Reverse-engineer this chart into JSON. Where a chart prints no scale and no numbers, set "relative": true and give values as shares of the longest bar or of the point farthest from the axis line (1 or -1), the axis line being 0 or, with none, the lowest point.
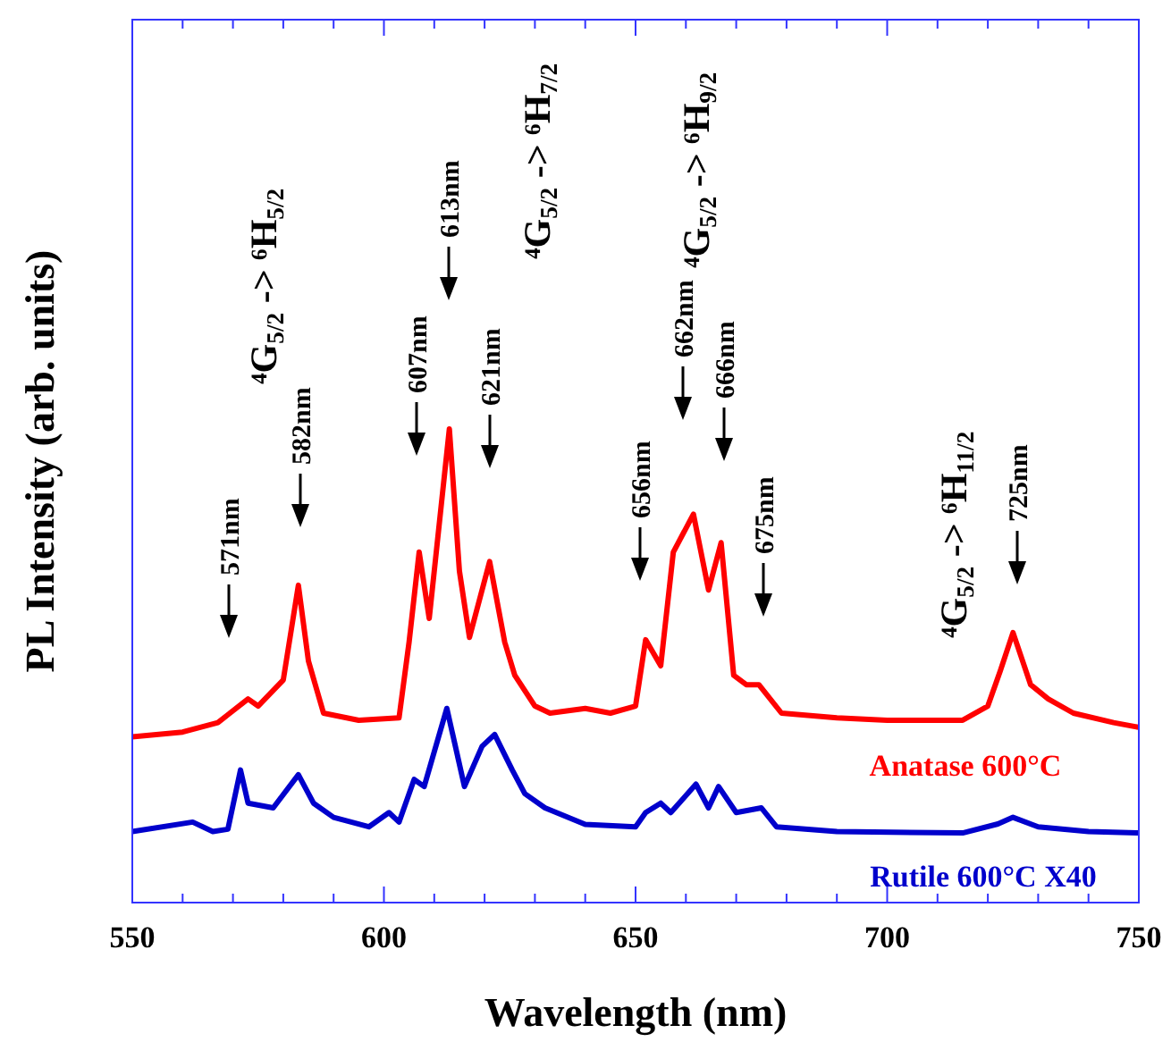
{
  "chart_data": {
    "type": "line",
    "relative": true,
    "xlabel": "Wavelength (nm)",
    "ylabel": "PL Intensity (arb. units)",
    "xlim": [
      550,
      750
    ],
    "xticks": [
      550,
      {
        "value": 560,
        "label": null
      },
      {
        "value": 570,
        "label": null
      },
      {
        "value": 580,
        "label": null
      },
      {
        "value": 590,
        "label": null
      },
      600,
      {
        "value": 610,
        "label": null
      },
      {
        "value": 620,
        "label": null
      },
      {
        "value": 630,
        "label": null
      },
      {
        "value": 640,
        "label": null
      },
      650,
      {
        "value": 660,
        "label": null
      },
      {
        "value": 670,
        "label": null
      },
      {
        "value": 680,
        "label": null
      },
      {
        "value": 690,
        "label": null
      },
      700,
      {
        "value": 710,
        "label": null
      },
      {
        "value": 720,
        "label": null
      },
      {
        "value": 730,
        "label": null
      },
      {
        "value": 740,
        "label": null
      },
      750
    ],
    "grid": false,
    "legend": false,
    "marker": "none",
    "line_style": "solid",
    "series": [
      {
        "name": "Anatase 600°C",
        "color": "#ff0000",
        "x": [
          550,
          560,
          567,
          573,
          575,
          580,
          583,
          585,
          588,
          595,
          603,
          605,
          607,
          609,
          613,
          615,
          617,
          621,
          624,
          626,
          630,
          633,
          640,
          645,
          650,
          652,
          655,
          657.5,
          661.5,
          664.5,
          667,
          669.5,
          672,
          674.5,
          679,
          690,
          700,
          715,
          720,
          722.5,
          725,
          728.5,
          732,
          737,
          745,
          750
        ],
        "values": [
          0.35,
          0.36,
          0.38,
          0.43,
          0.415,
          0.47,
          0.67,
          0.51,
          0.4,
          0.385,
          0.39,
          0.55,
          0.74,
          0.6,
          1.0,
          0.7,
          0.56,
          0.72,
          0.55,
          0.48,
          0.415,
          0.4,
          0.41,
          0.4,
          0.415,
          0.555,
          0.5,
          0.74,
          0.82,
          0.66,
          0.76,
          0.48,
          0.46,
          0.46,
          0.4,
          0.39,
          0.385,
          0.385,
          0.415,
          0.49,
          0.57,
          0.46,
          0.43,
          0.4,
          0.38,
          0.37
        ]
      },
      {
        "name": "Rutile 600°C X40",
        "color": "#0000cc",
        "x": [
          550,
          562,
          566,
          569,
          571.5,
          573,
          578,
          583,
          586,
          590,
          597,
          601,
          603,
          606,
          608,
          612.5,
          616,
          619.5,
          622,
          625.5,
          628,
          632,
          640,
          650,
          652,
          655,
          657,
          662,
          664.5,
          666.5,
          670,
          675,
          678,
          690,
          715,
          722,
          725,
          730,
          740,
          750
        ],
        "values": [
          0.15,
          0.17,
          0.15,
          0.155,
          0.28,
          0.21,
          0.2,
          0.27,
          0.21,
          0.18,
          0.16,
          0.19,
          0.17,
          0.26,
          0.245,
          0.41,
          0.245,
          0.33,
          0.355,
          0.28,
          0.23,
          0.2,
          0.165,
          0.16,
          0.19,
          0.21,
          0.19,
          0.25,
          0.2,
          0.245,
          0.19,
          0.2,
          0.16,
          0.15,
          0.147,
          0.166,
          0.18,
          0.16,
          0.15,
          0.147
        ]
      }
    ],
    "annotations": [
      "571nm",
      "582nm",
      "607nm",
      "613nm",
      "621nm",
      "656nm",
      "662nm",
      "666nm",
      "675nm",
      "725nm",
      "⁴G$_{5/2}$ -> ⁶H$_{5/2}$",
      "⁴G$_{5/2}$ -> ⁶H$_{7/2}$",
      "⁴G$_{5/2}$ -> ⁶H$_{9/2}$",
      "⁴G$_{5/2}$ -> ⁶H$_{11/2}$"
    ]
  }
}
